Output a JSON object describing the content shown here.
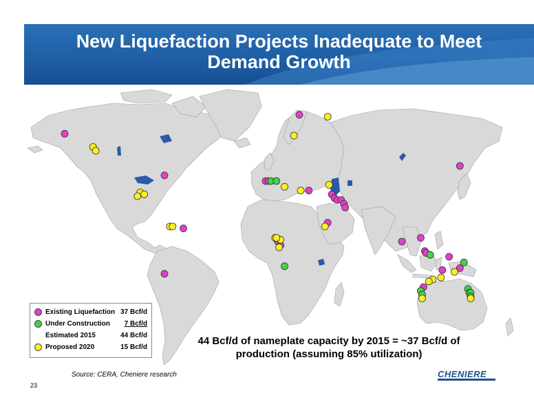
{
  "slide": {
    "title_line1": "New Liquefaction Projects Inadequate to Meet",
    "title_line2": "Demand Growth",
    "caption_line1": "44 Bcf/d of nameplate capacity by 2015 = ~37 Bcf/d of",
    "caption_line2": "production (assuming 85% utilization)",
    "source": "Source: CERA, Cheniere research",
    "page_number": "23",
    "logo_text": "CHENIERE"
  },
  "legend": {
    "existing": {
      "label": "Existing Liquefaction",
      "value": "37 Bcf/d",
      "color": "#e040c8"
    },
    "construction": {
      "label": "Under Construction",
      "value": "7 Bcf/d",
      "color": "#44d24a"
    },
    "estimated": {
      "label": "Estimated 2015",
      "value": "44 Bcf/d"
    },
    "proposed": {
      "label": "Proposed 2020",
      "value": "15 Bcf/d",
      "color": "#f8f020"
    }
  },
  "colors": {
    "ocean": "#ffffff",
    "land": "#d9d9d9",
    "border": "#a0a0a0",
    "lakes": "#2a5aa8",
    "title_band": "#1f5fa6"
  },
  "markers": {
    "existing": [
      {
        "lat": 61,
        "lon": -150
      },
      {
        "lat": 39,
        "lon": -76
      },
      {
        "lat": 11,
        "lon": -62
      },
      {
        "lat": -13,
        "lon": -76
      },
      {
        "lat": 71,
        "lon": 24
      },
      {
        "lat": 36,
        "lon": -1
      },
      {
        "lat": 36,
        "lon": 1
      },
      {
        "lat": 31,
        "lon": 31
      },
      {
        "lat": 29,
        "lon": 48
      },
      {
        "lat": 27,
        "lon": 50
      },
      {
        "lat": 26,
        "lon": 52
      },
      {
        "lat": 26,
        "lon": 55
      },
      {
        "lat": 24,
        "lon": 57
      },
      {
        "lat": 22,
        "lon": 58
      },
      {
        "lat": 14,
        "lon": 45
      },
      {
        "lat": 4,
        "lon": 8
      },
      {
        "lat": 2,
        "lon": 10
      },
      {
        "lat": 44,
        "lon": 143
      },
      {
        "lat": 4,
        "lon": 100
      },
      {
        "lat": 6,
        "lon": 114
      },
      {
        "lat": -1,
        "lon": 117
      },
      {
        "lat": -2,
        "lon": 118
      },
      {
        "lat": -4,
        "lon": 135
      },
      {
        "lat": -20,
        "lon": 116
      },
      {
        "lat": -11,
        "lon": 130
      },
      {
        "lat": -10,
        "lon": 143
      }
    ],
    "construction": [
      {
        "lat": 36,
        "lon": 3
      },
      {
        "lat": 36,
        "lon": 7
      },
      {
        "lat": -9,
        "lon": 13
      },
      {
        "lat": -3,
        "lon": 121
      },
      {
        "lat": -7,
        "lon": 146
      },
      {
        "lat": -22,
        "lon": 114
      },
      {
        "lat": -24,
        "lon": 115
      },
      {
        "lat": -21,
        "lon": 149
      },
      {
        "lat": -23,
        "lon": 150
      },
      {
        "lat": -23,
        "lon": 151
      },
      {
        "lat": -25,
        "lon": 151
      }
    ],
    "proposed": [
      {
        "lat": 70,
        "lon": 45
      },
      {
        "lat": 60,
        "lon": 20
      },
      {
        "lat": 54,
        "lon": -129
      },
      {
        "lat": 52,
        "lon": -127
      },
      {
        "lat": 30,
        "lon": -94
      },
      {
        "lat": 28,
        "lon": -96
      },
      {
        "lat": 29,
        "lon": -91
      },
      {
        "lat": 12,
        "lon": -72
      },
      {
        "lat": 12,
        "lon": -70
      },
      {
        "lat": 33,
        "lon": 13
      },
      {
        "lat": 31,
        "lon": 25
      },
      {
        "lat": 34,
        "lon": 46
      },
      {
        "lat": 12,
        "lon": 43
      },
      {
        "lat": 6,
        "lon": 6
      },
      {
        "lat": 5,
        "lon": 10
      },
      {
        "lat": 1,
        "lon": 9
      },
      {
        "lat": 6,
        "lon": 7
      },
      {
        "lat": -16,
        "lon": 123
      },
      {
        "lat": -17,
        "lon": 120
      },
      {
        "lat": -15,
        "lon": 129
      },
      {
        "lat": -12,
        "lon": 139
      },
      {
        "lat": -26,
        "lon": 115
      },
      {
        "lat": -26,
        "lon": 151
      }
    ]
  }
}
